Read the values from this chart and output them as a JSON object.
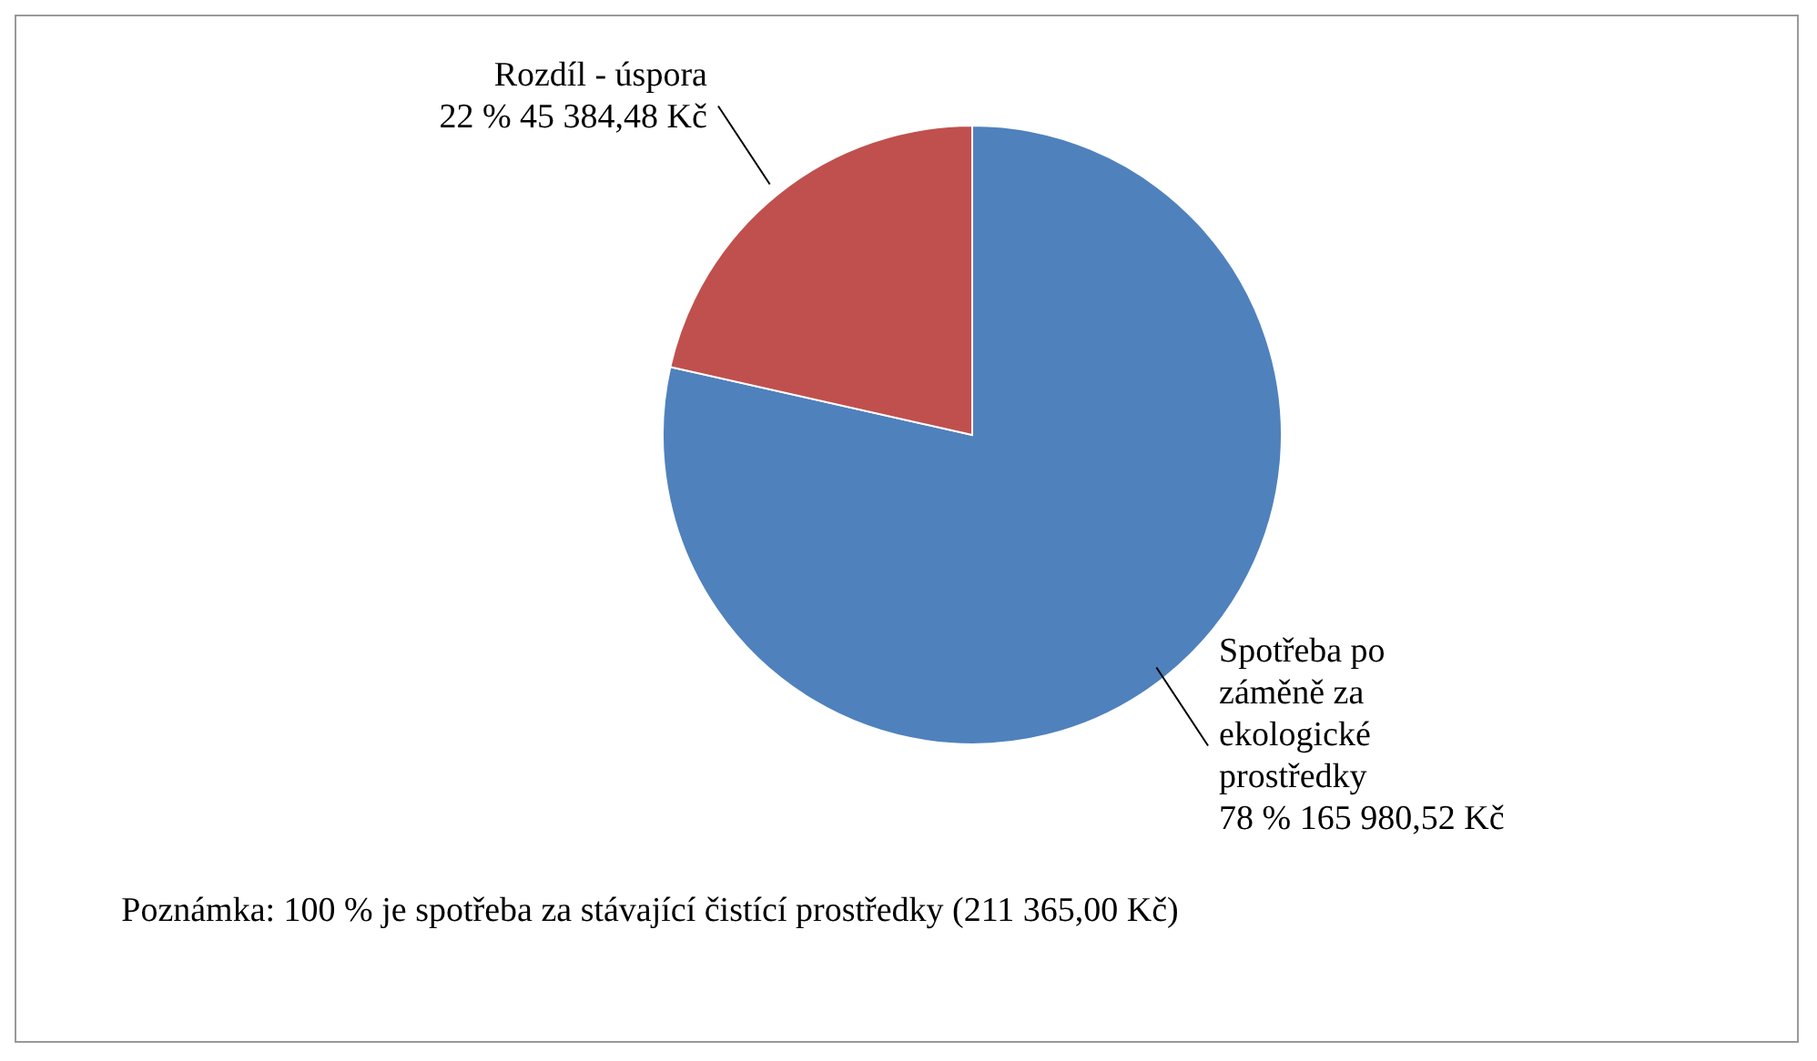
{
  "chart_data": {
    "type": "pie",
    "categories": [
      "Spotřeba po záměně za ekologické prostředky",
      "Rozdíl - úspora"
    ],
    "values": [
      165980.52,
      45384.48
    ],
    "colors": [
      "#4f81bd",
      "#c0504d"
    ],
    "value_labels": [
      "78 % 165 980,52 Kč",
      "22 % 45 384,48 Kč"
    ],
    "legend": false,
    "annotations": [
      "Poznámka: 100 % je spotřeba za stávající čistící prostředky (211 365,00 Kč)"
    ]
  }
}
